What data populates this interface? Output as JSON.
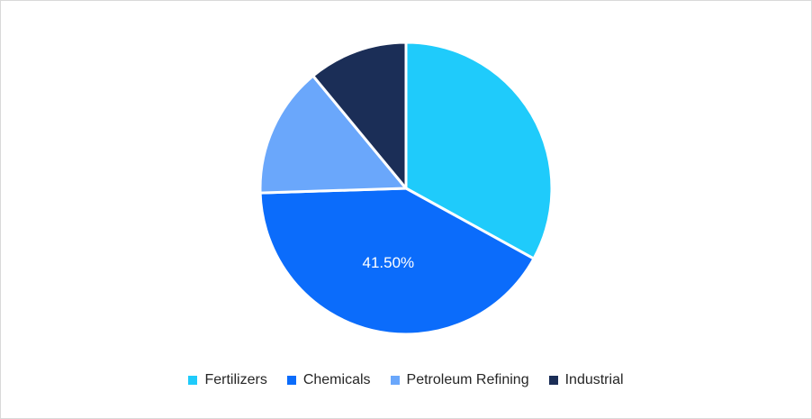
{
  "chart_data": {
    "type": "pie",
    "title": "",
    "slices": [
      {
        "label": "Fertilizers",
        "value": 33.0,
        "color": "#1fcbfb"
      },
      {
        "label": "Chemicals",
        "value": 41.5,
        "color": "#0b6cfb"
      },
      {
        "label": "Petroleum Refining",
        "value": 14.5,
        "color": "#6aa7fb"
      },
      {
        "label": "Industrial",
        "value": 11.0,
        "color": "#1b2e57"
      }
    ],
    "data_labels": [
      {
        "slice": "Chemicals",
        "text": "41.50%"
      }
    ],
    "legend_position": "bottom",
    "start_angle_deg": 0,
    "direction": "clockwise"
  }
}
